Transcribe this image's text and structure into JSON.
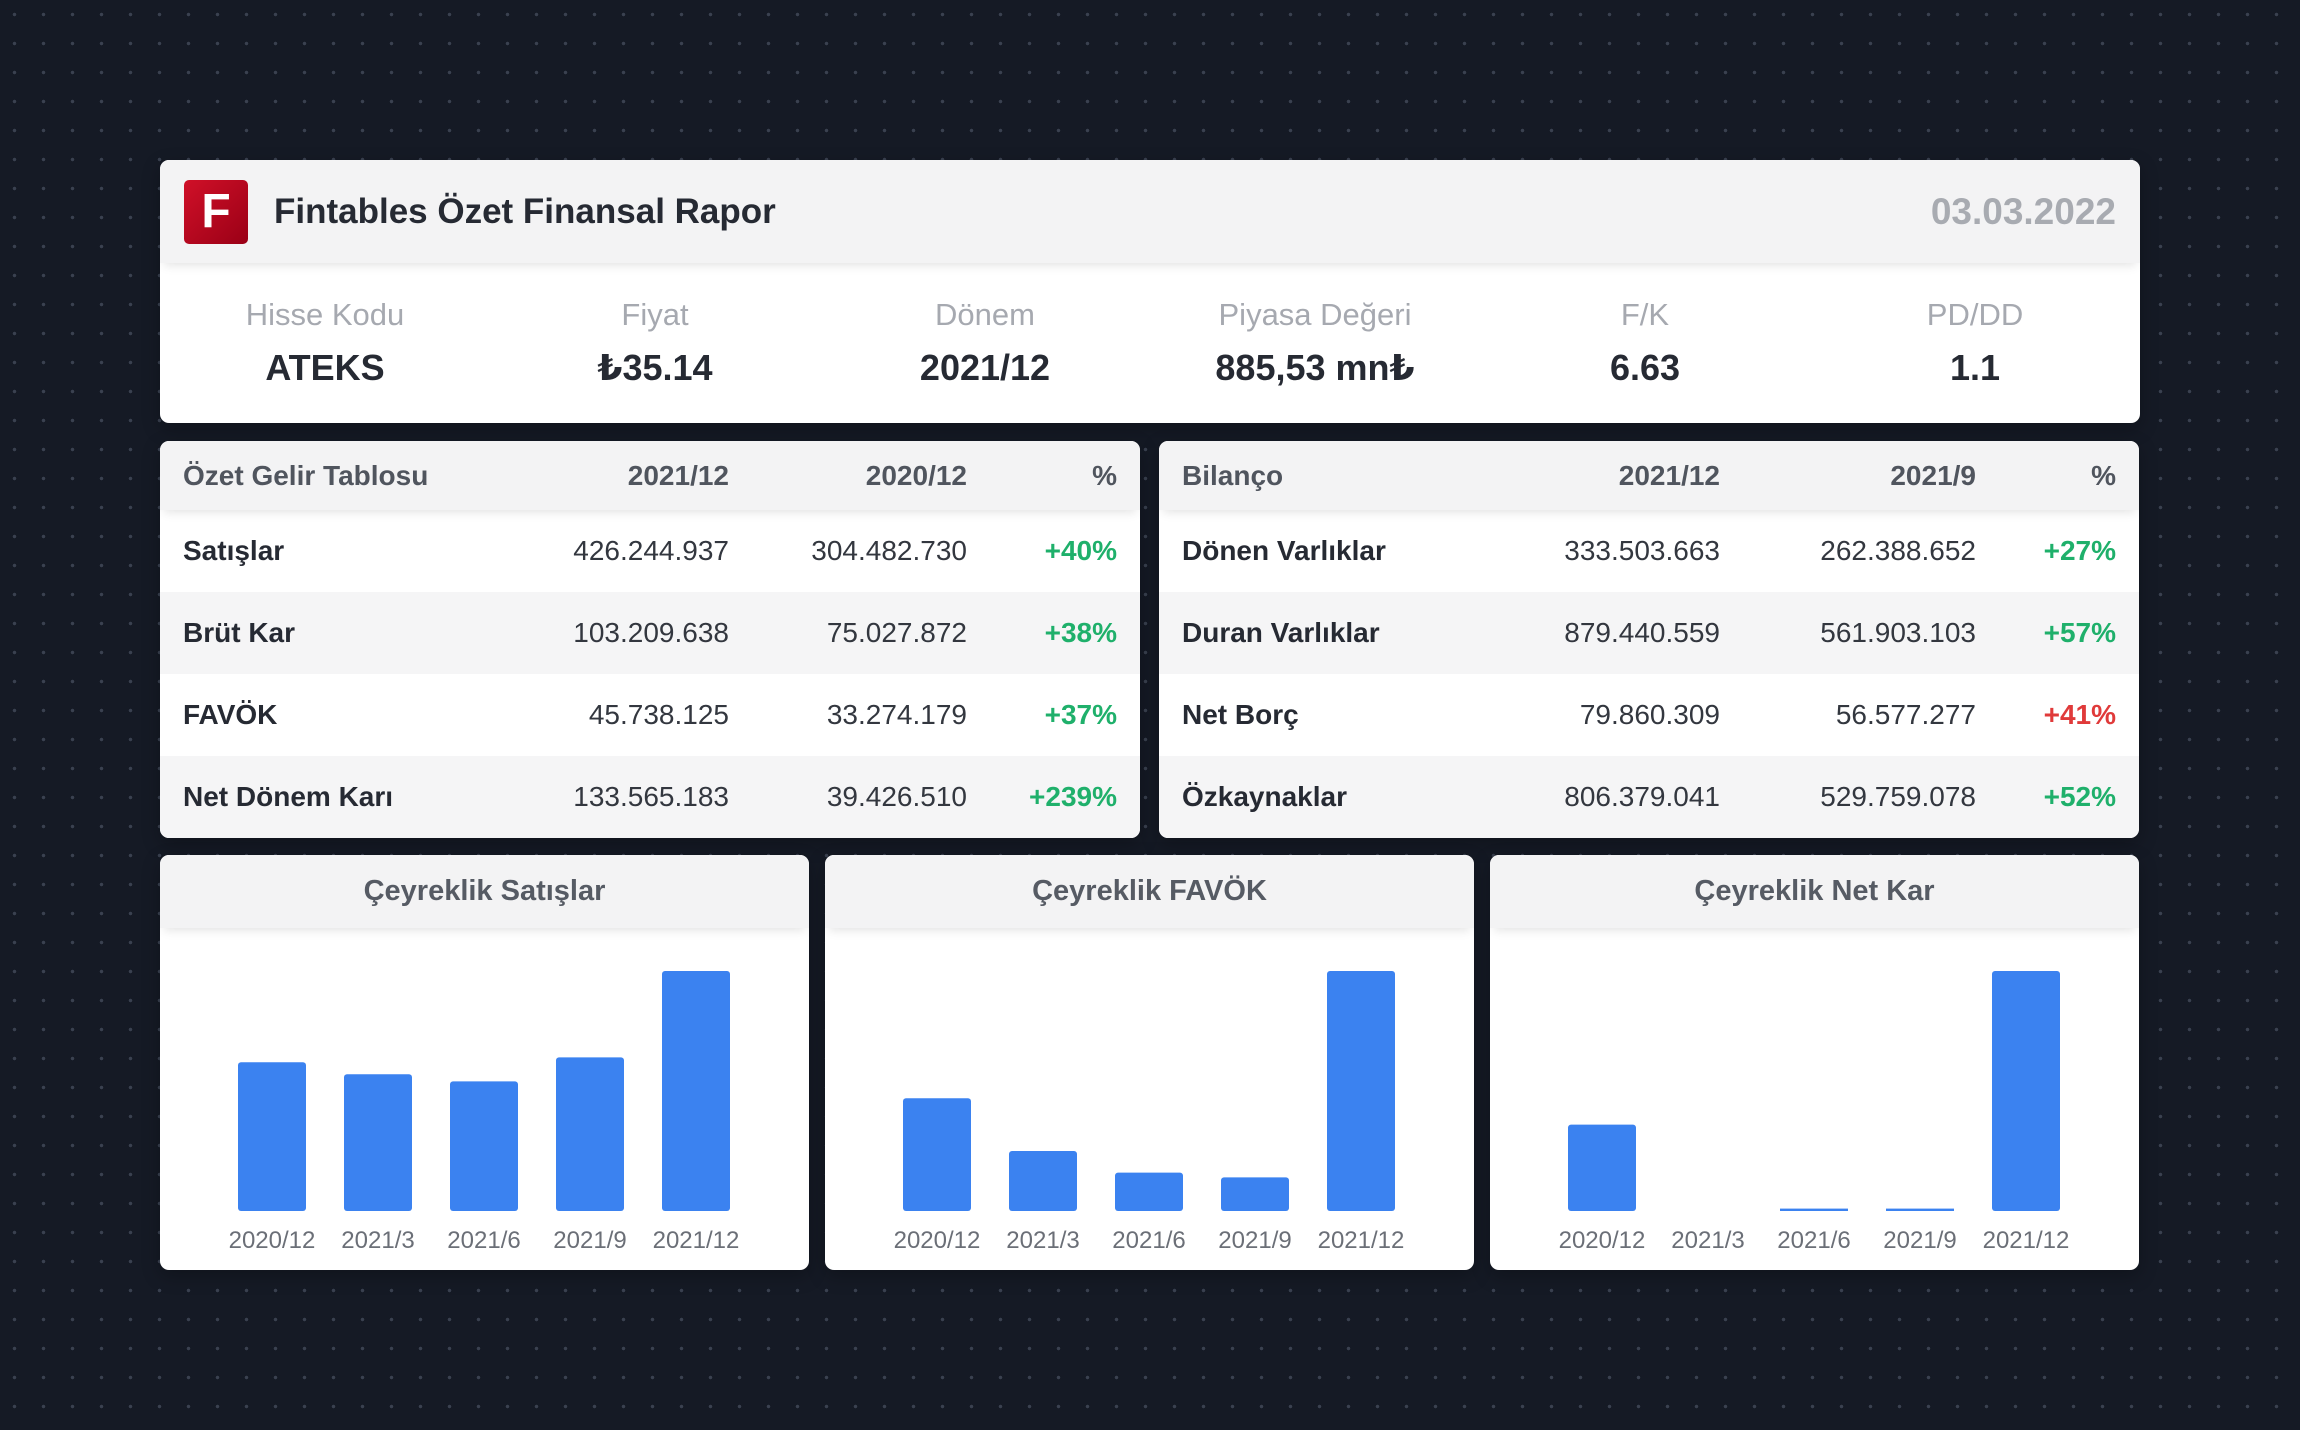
{
  "header": {
    "logo_letter": "F",
    "title": "Fintables Özet Finansal Rapor",
    "date": "03.03.2022",
    "stats": [
      {
        "label": "Hisse Kodu",
        "value": "ATEKS"
      },
      {
        "label": "Fiyat",
        "value": "₺35.14"
      },
      {
        "label": "Dönem",
        "value": "2021/12"
      },
      {
        "label": "Piyasa Değeri",
        "value": "885,53 mn₺"
      },
      {
        "label": "F/K",
        "value": "6.63"
      },
      {
        "label": "PD/DD",
        "value": "1.1"
      }
    ]
  },
  "income": {
    "headers": [
      "Özet Gelir Tablosu",
      "2021/12",
      "2020/12",
      "%"
    ],
    "rows": [
      {
        "name": "Satışlar",
        "cur": "426.244.937",
        "prev": "304.482.730",
        "pct": "+40%",
        "color": "#1fb06b"
      },
      {
        "name": "Brüt Kar",
        "cur": "103.209.638",
        "prev": "75.027.872",
        "pct": "+38%",
        "color": "#1fb06b"
      },
      {
        "name": "FAVÖK",
        "cur": "45.738.125",
        "prev": "33.274.179",
        "pct": "+37%",
        "color": "#1fb06b"
      },
      {
        "name": "Net Dönem Karı",
        "cur": "133.565.183",
        "prev": "39.426.510",
        "pct": "+239%",
        "color": "#1fb06b"
      }
    ]
  },
  "balance": {
    "headers": [
      "Bilanço",
      "2021/12",
      "2021/9",
      "%"
    ],
    "rows": [
      {
        "name": "Dönen Varlıklar",
        "cur": "333.503.663",
        "prev": "262.388.652",
        "pct": "+27%",
        "color": "#1fb06b"
      },
      {
        "name": "Duran Varlıklar",
        "cur": "879.440.559",
        "prev": "561.903.103",
        "pct": "+57%",
        "color": "#1fb06b"
      },
      {
        "name": "Net Borç",
        "cur": "79.860.309",
        "prev": "56.577.277",
        "pct": "+41%",
        "color": "#e03a3a"
      },
      {
        "name": "Özkaynaklar",
        "cur": "806.379.041",
        "prev": "529.759.078",
        "pct": "+52%",
        "color": "#1fb06b"
      }
    ]
  },
  "colors": {
    "bar": "#3b82f0",
    "positive": "#1fb06b",
    "negative": "#e03a3a",
    "logo": "#c8102e"
  },
  "chart_data": [
    {
      "type": "bar",
      "title": "Çeyreklik Satışlar",
      "categories": [
        "2020/12",
        "2021/3",
        "2021/6",
        "2021/9",
        "2021/12"
      ],
      "values": [
        62,
        57,
        54,
        64,
        100
      ],
      "ylim": [
        0,
        100
      ]
    },
    {
      "type": "bar",
      "title": "Çeyreklik FAVÖK",
      "categories": [
        "2020/12",
        "2021/3",
        "2021/6",
        "2021/9",
        "2021/12"
      ],
      "values": [
        47,
        25,
        16,
        14,
        100
      ],
      "ylim": [
        0,
        100
      ]
    },
    {
      "type": "bar",
      "title": "Çeyreklik Net Kar",
      "categories": [
        "2020/12",
        "2021/3",
        "2021/6",
        "2021/9",
        "2021/12"
      ],
      "values": [
        36,
        0,
        1,
        1,
        100
      ],
      "ylim": [
        0,
        100
      ]
    }
  ]
}
